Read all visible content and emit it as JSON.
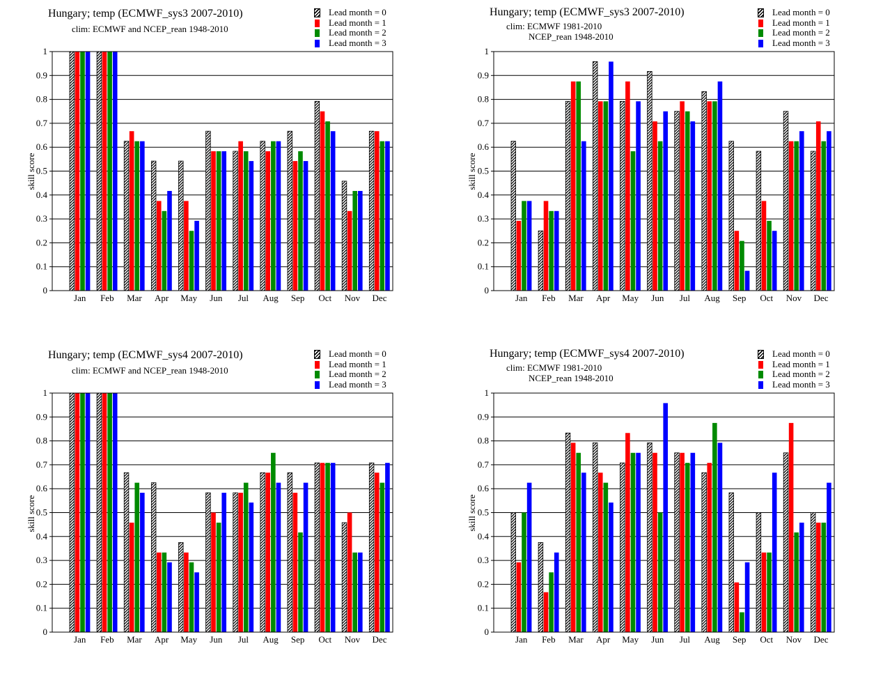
{
  "legend_entries": [
    "Lead month = 0",
    "Lead month = 1",
    "Lead month = 2",
    "Lead month = 3"
  ],
  "series_colors": [
    "hatched-black",
    "#ff0000",
    "#008a00",
    "#0000ff"
  ],
  "chart_data": [
    {
      "type": "bar",
      "title": "Hungary; temp (ECMWF_sys3 2007-2010)",
      "subtitle": [
        "clim: ECMWF and NCEP_rean 1948-2010"
      ],
      "ylabel": "skill  score",
      "ylim": [
        0,
        1
      ],
      "yticks": [
        "0",
        "0.1",
        "0.2",
        "0.3",
        "0.4",
        "0.5",
        "0.6",
        "0.7",
        "0.8",
        "0.9",
        "1"
      ],
      "grid": "horizontal",
      "legend": "top-right",
      "categories": [
        "Jan",
        "Feb",
        "Mar",
        "Apr",
        "May",
        "Jun",
        "Jul",
        "Aug",
        "Sep",
        "Oct",
        "Nov",
        "Dec"
      ],
      "series": [
        {
          "name": "Lead month = 0",
          "values": [
            1.0,
            1.0,
            0.625,
            0.542,
            0.542,
            0.667,
            0.583,
            0.625,
            0.667,
            0.792,
            0.458,
            0.667
          ]
        },
        {
          "name": "Lead month = 1",
          "values": [
            1.0,
            1.0,
            0.667,
            0.375,
            0.375,
            0.583,
            0.625,
            0.583,
            0.542,
            0.75,
            0.333,
            0.667
          ]
        },
        {
          "name": "Lead month = 2",
          "values": [
            1.0,
            1.0,
            0.625,
            0.333,
            0.25,
            0.583,
            0.583,
            0.625,
            0.583,
            0.708,
            0.417,
            0.625
          ]
        },
        {
          "name": "Lead month = 3",
          "values": [
            1.0,
            1.0,
            0.625,
            0.417,
            0.292,
            0.583,
            0.542,
            0.625,
            0.542,
            0.667,
            0.417,
            0.625
          ]
        }
      ]
    },
    {
      "type": "bar",
      "title": "Hungary; temp (ECMWF_sys3 2007-2010)",
      "subtitle": [
        "clim: ECMWF 1981-2010",
        "NCEP_rean 1948-2010"
      ],
      "ylabel": "skill  score",
      "ylim": [
        0,
        1
      ],
      "yticks": [
        "0",
        "0.1",
        "0.2",
        "0.3",
        "0.4",
        "0.5",
        "0.6",
        "0.7",
        "0.8",
        "0.9",
        "1"
      ],
      "grid": "horizontal",
      "legend": "top-right",
      "categories": [
        "Jan",
        "Feb",
        "Mar",
        "Apr",
        "May",
        "Jun",
        "Jul",
        "Aug",
        "Sep",
        "Oct",
        "Nov",
        "Dec"
      ],
      "series": [
        {
          "name": "Lead month = 0",
          "values": [
            0.625,
            0.25,
            0.792,
            0.958,
            0.792,
            0.917,
            0.75,
            0.833,
            0.625,
            0.583,
            0.75,
            0.583
          ]
        },
        {
          "name": "Lead month = 1",
          "values": [
            0.292,
            0.375,
            0.875,
            0.792,
            0.875,
            0.708,
            0.792,
            0.792,
            0.25,
            0.375,
            0.625,
            0.708
          ]
        },
        {
          "name": "Lead month = 2",
          "values": [
            0.375,
            0.333,
            0.875,
            0.792,
            0.583,
            0.625,
            0.75,
            0.792,
            0.208,
            0.292,
            0.625,
            0.625
          ]
        },
        {
          "name": "Lead month = 3",
          "values": [
            0.375,
            0.333,
            0.625,
            0.958,
            0.792,
            0.75,
            0.708,
            0.875,
            0.083,
            0.25,
            0.667,
            0.667
          ]
        }
      ]
    },
    {
      "type": "bar",
      "title": "Hungary; temp (ECMWF_sys4 2007-2010)",
      "subtitle": [
        "clim: ECMWF and NCEP_rean 1948-2010"
      ],
      "ylabel": "skill  score",
      "ylim": [
        0,
        1
      ],
      "yticks": [
        "0",
        "0.1",
        "0.2",
        "0.3",
        "0.4",
        "0.5",
        "0.6",
        "0.7",
        "0.8",
        "0.9",
        "1"
      ],
      "grid": "horizontal",
      "legend": "top-right",
      "categories": [
        "Jan",
        "Feb",
        "Mar",
        "Apr",
        "May",
        "Jun",
        "Jul",
        "Aug",
        "Sep",
        "Oct",
        "Nov",
        "Dec"
      ],
      "series": [
        {
          "name": "Lead month = 0",
          "values": [
            1.0,
            1.0,
            0.667,
            0.625,
            0.375,
            0.583,
            0.583,
            0.667,
            0.667,
            0.708,
            0.458,
            0.708
          ]
        },
        {
          "name": "Lead month = 1",
          "values": [
            1.0,
            1.0,
            0.458,
            0.333,
            0.333,
            0.5,
            0.583,
            0.667,
            0.583,
            0.708,
            0.5,
            0.667
          ]
        },
        {
          "name": "Lead month = 2",
          "values": [
            1.0,
            1.0,
            0.625,
            0.333,
            0.292,
            0.458,
            0.625,
            0.75,
            0.417,
            0.708,
            0.333,
            0.625
          ]
        },
        {
          "name": "Lead month = 3",
          "values": [
            1.0,
            1.0,
            0.583,
            0.292,
            0.25,
            0.583,
            0.542,
            0.625,
            0.625,
            0.708,
            0.333,
            0.708
          ]
        }
      ]
    },
    {
      "type": "bar",
      "title": "Hungary; temp (ECMWF_sys4 2007-2010)",
      "subtitle": [
        "clim: ECMWF 1981-2010",
        "NCEP_rean 1948-2010"
      ],
      "ylabel": "skill  score",
      "ylim": [
        0,
        1
      ],
      "yticks": [
        "0",
        "0.1",
        "0.2",
        "0.3",
        "0.4",
        "0.5",
        "0.6",
        "0.7",
        "0.8",
        "0.9",
        "1"
      ],
      "grid": "horizontal",
      "legend": "top-right",
      "categories": [
        "Jan",
        "Feb",
        "Mar",
        "Apr",
        "May",
        "Jun",
        "Jul",
        "Aug",
        "Sep",
        "Oct",
        "Nov",
        "Dec"
      ],
      "series": [
        {
          "name": "Lead month = 0",
          "values": [
            0.5,
            0.375,
            0.833,
            0.792,
            0.708,
            0.792,
            0.75,
            0.667,
            0.583,
            0.5,
            0.75,
            0.5
          ]
        },
        {
          "name": "Lead month = 1",
          "values": [
            0.292,
            0.167,
            0.792,
            0.667,
            0.833,
            0.75,
            0.75,
            0.708,
            0.208,
            0.333,
            0.875,
            0.458
          ]
        },
        {
          "name": "Lead month = 2",
          "values": [
            0.5,
            0.25,
            0.75,
            0.625,
            0.75,
            0.5,
            0.708,
            0.875,
            0.083,
            0.333,
            0.417,
            0.458
          ]
        },
        {
          "name": "Lead month = 3",
          "values": [
            0.625,
            0.333,
            0.667,
            0.542,
            0.75,
            0.958,
            0.75,
            0.792,
            0.292,
            0.667,
            0.458,
            0.625
          ]
        }
      ]
    }
  ]
}
